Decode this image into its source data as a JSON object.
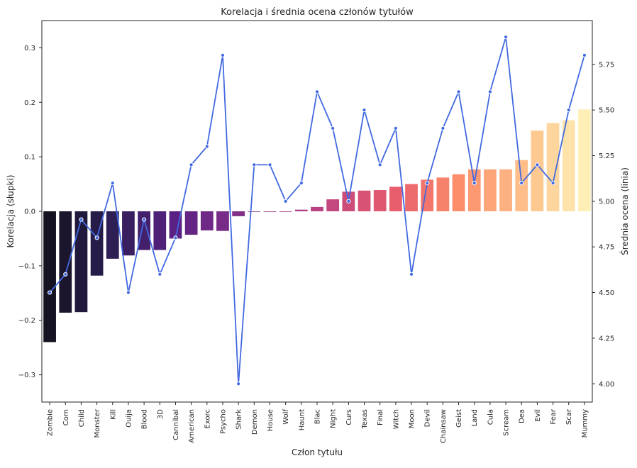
{
  "chart_data": {
    "type": "bar+line",
    "title": "Korelacja i średnia ocena członów tytułów",
    "xlabel": "Człon tytułu",
    "ylabel_left": "Korelacja (słupki)",
    "ylabel_right": "Średnia ocena (linia)",
    "ylim_left": [
      -0.35,
      0.35
    ],
    "ylim_right": [
      3.9,
      5.99
    ],
    "yticks_left": [
      -0.3,
      -0.2,
      -0.1,
      0.0,
      0.1,
      0.2,
      0.3
    ],
    "yticks_right": [
      4.0,
      4.25,
      4.5,
      4.75,
      5.0,
      5.25,
      5.5,
      5.75
    ],
    "yticks_left_labels": [
      "−0.3",
      "−0.2",
      "−0.1",
      "0.0",
      "0.1",
      "0.2",
      "0.3"
    ],
    "yticks_right_labels": [
      "4.00",
      "4.25",
      "4.50",
      "4.75",
      "5.00",
      "5.25",
      "5.50",
      "5.75"
    ],
    "categories": [
      "Zombie",
      "Corn",
      "Child",
      "Monster",
      "Kill",
      "Ouija",
      "Blood",
      "3D",
      "Cannibal",
      "American",
      "Exorc",
      "Psycho",
      "Shark",
      "Demon",
      "House",
      "Wolf",
      "Haunt",
      "Blac",
      "Night",
      "Curs",
      "Texas",
      "Final",
      "Witch",
      "Moon",
      "Devil",
      "Chainsaw",
      "Geist",
      "Land",
      "Cula",
      "Scream",
      "Dea",
      "Evil",
      "Fear",
      "Scar",
      "Mummy"
    ],
    "series": [
      {
        "kind": "bar",
        "axis": "left",
        "values": [
          -0.24,
          -0.186,
          -0.185,
          -0.118,
          -0.087,
          -0.081,
          -0.071,
          -0.071,
          -0.05,
          -0.043,
          -0.035,
          -0.036,
          -0.009,
          -0.001,
          0.0,
          0.0,
          0.003,
          0.008,
          0.022,
          0.036,
          0.038,
          0.039,
          0.045,
          0.05,
          0.058,
          0.062,
          0.068,
          0.077,
          0.077,
          0.077,
          0.094,
          0.148,
          0.162,
          0.167,
          0.187
        ],
        "colormap": "magma"
      },
      {
        "kind": "line",
        "axis": "right",
        "values": [
          4.5,
          4.6,
          4.9,
          4.8,
          5.1,
          4.5,
          4.9,
          4.6,
          4.8,
          5.2,
          5.3,
          5.8,
          4.0,
          5.2,
          5.2,
          5.0,
          5.1,
          5.6,
          5.4,
          5.0,
          5.5,
          5.2,
          5.4,
          4.6,
          5.1,
          5.4,
          5.6,
          5.1,
          5.6,
          5.9,
          5.1,
          5.2,
          5.1,
          5.5,
          5.8
        ],
        "color": "#4169e1"
      }
    ],
    "grid": false,
    "legend": "none"
  }
}
